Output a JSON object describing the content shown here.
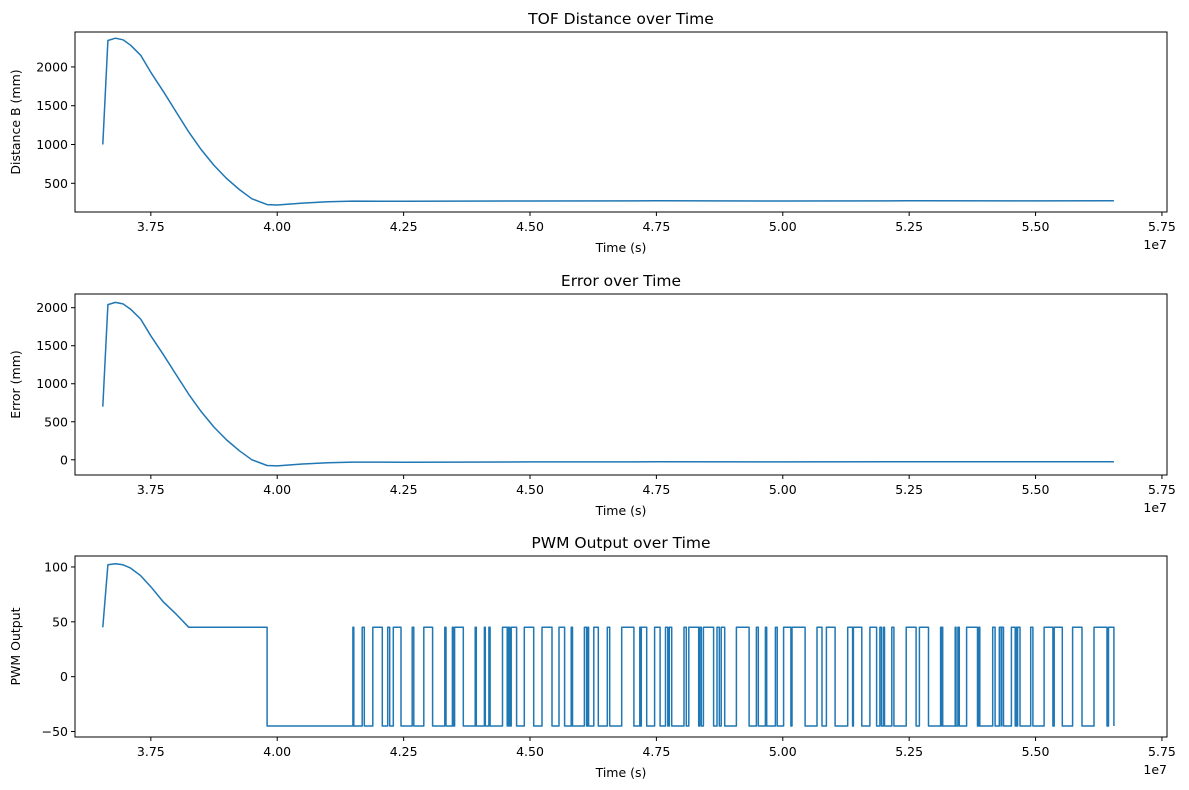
{
  "chart_data": [
    {
      "type": "line",
      "title": "TOF Distance over Time",
      "xlabel": "Time (s)",
      "ylabel": "Distance B (mm)",
      "xlim": [
        3.6,
        5.76
      ],
      "ylim": [
        130,
        2450
      ],
      "x_ticks": [
        3.75,
        4.0,
        4.25,
        4.5,
        4.75,
        5.0,
        5.25,
        5.5,
        5.75
      ],
      "x_tick_labels": [
        "3.75",
        "4.00",
        "4.25",
        "4.50",
        "4.75",
        "5.00",
        "5.25",
        "5.50",
        "5.75"
      ],
      "y_ticks": [
        500,
        1000,
        1500,
        2000
      ],
      "y_tick_labels": [
        "500",
        "1000",
        "1500",
        "2000"
      ],
      "x_offset_label": "1e7",
      "series": [
        {
          "name": "Distance B",
          "x": [
            3.655,
            3.665,
            3.68,
            3.695,
            3.71,
            3.73,
            3.75,
            3.775,
            3.8,
            3.825,
            3.85,
            3.875,
            3.9,
            3.925,
            3.95,
            3.98,
            4.0,
            4.05,
            4.1,
            4.15,
            4.25,
            4.5,
            4.75,
            5.0,
            5.25,
            5.5,
            5.655
          ],
          "y": [
            1000,
            2340,
            2370,
            2350,
            2280,
            2150,
            1930,
            1680,
            1420,
            1160,
            930,
            730,
            560,
            420,
            300,
            225,
            220,
            245,
            262,
            270,
            268,
            272,
            274,
            272,
            275,
            273,
            275
          ]
        }
      ]
    },
    {
      "type": "line",
      "title": "Error over Time",
      "xlabel": "Time (s)",
      "ylabel": "Error (mm)",
      "xlim": [
        3.6,
        5.76
      ],
      "ylim": [
        -200,
        2180
      ],
      "x_ticks": [
        3.75,
        4.0,
        4.25,
        4.5,
        4.75,
        5.0,
        5.25,
        5.5,
        5.75
      ],
      "x_tick_labels": [
        "3.75",
        "4.00",
        "4.25",
        "4.50",
        "4.75",
        "5.00",
        "5.25",
        "5.50",
        "5.75"
      ],
      "y_ticks": [
        0,
        500,
        1000,
        1500,
        2000
      ],
      "y_tick_labels": [
        "0",
        "500",
        "1000",
        "1500",
        "2000"
      ],
      "x_offset_label": "1e7",
      "series": [
        {
          "name": "Error",
          "x": [
            3.655,
            3.665,
            3.68,
            3.695,
            3.71,
            3.73,
            3.75,
            3.775,
            3.8,
            3.825,
            3.85,
            3.875,
            3.9,
            3.925,
            3.95,
            3.98,
            4.0,
            4.05,
            4.1,
            4.15,
            4.25,
            4.5,
            4.75,
            5.0,
            5.25,
            5.5,
            5.655
          ],
          "y": [
            700,
            2040,
            2070,
            2050,
            1980,
            1850,
            1630,
            1380,
            1120,
            860,
            630,
            430,
            260,
            120,
            0,
            -75,
            -80,
            -55,
            -38,
            -30,
            -32,
            -28,
            -26,
            -28,
            -25,
            -27,
            -25
          ]
        }
      ]
    },
    {
      "type": "line",
      "title": "PWM Output over Time",
      "xlabel": "Time (s)",
      "ylabel": "PWM Output",
      "xlim": [
        3.6,
        5.76
      ],
      "ylim": [
        -55,
        110
      ],
      "x_ticks": [
        3.75,
        4.0,
        4.25,
        4.5,
        4.75,
        5.0,
        5.25,
        5.5,
        5.75
      ],
      "x_tick_labels": [
        "3.75",
        "4.00",
        "4.25",
        "4.50",
        "4.75",
        "5.00",
        "5.25",
        "5.50",
        "5.75"
      ],
      "y_ticks": [
        -50,
        0,
        50,
        100
      ],
      "y_tick_labels": [
        "−50",
        "0",
        "50",
        "100"
      ],
      "x_offset_label": "1e7",
      "series": [
        {
          "name": "PWM Output",
          "x": [
            3.655,
            3.665,
            3.68,
            3.695,
            3.71,
            3.73,
            3.75,
            3.775,
            3.8,
            3.825,
            3.98,
            3.98,
            4.145
          ],
          "y": [
            45,
            102,
            103,
            102,
            99,
            92,
            82,
            68,
            57,
            45,
            45,
            -45,
            -45
          ]
        }
      ],
      "switching_segment": {
        "x_start": 4.145,
        "x_end": 5.655,
        "high": 45,
        "low": -45
      }
    }
  ]
}
